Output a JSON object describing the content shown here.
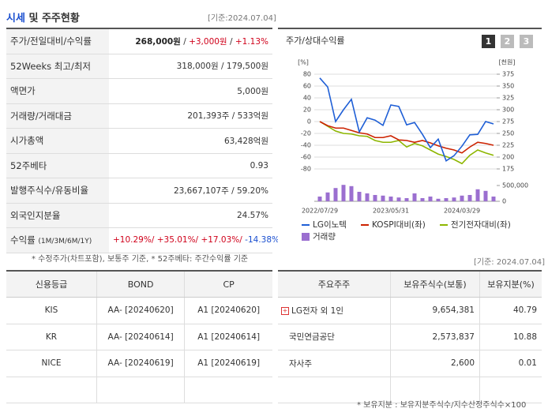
{
  "header": {
    "title_highlight": "시세",
    "title_rest": "및 주주현황",
    "date": "[기준:2024.07.04]"
  },
  "quote_table": {
    "rows": [
      {
        "label": "주가/전일대비/수익률",
        "parts": [
          "268,000원",
          "/",
          "+3,000원",
          "/",
          "+1.13%"
        ]
      },
      {
        "label": "52Weeks 최고/최저",
        "value": "318,000원 / 179,500원"
      },
      {
        "label": "액면가",
        "value": "5,000원"
      },
      {
        "label": "거래량/거래대금",
        "value": "201,393주 / 533억원"
      },
      {
        "label": "시가총액",
        "value": "63,428억원"
      },
      {
        "label": "52주베타",
        "value": "0.93"
      },
      {
        "label": "발행주식수/유동비율",
        "value": "23,667,107주 / 59.20%"
      },
      {
        "label": "외국인지분율",
        "value": "24.57%"
      },
      {
        "label": "수익률",
        "sublabel": "(1M/3M/6M/1Y)",
        "parts": [
          "+10.29%/",
          "+35.01%/",
          "+17.03%/",
          "-14.38%"
        ]
      }
    ],
    "note": "* 수정주가(차트포함), 보통주 기준, * 52주베타: 주간수익률 기준"
  },
  "chart_data": {
    "type": "line",
    "title": "주가/상대수익률",
    "buttons": [
      "1",
      "2",
      "3"
    ],
    "ylabel": "[%]",
    "y2label": "[천원]",
    "ylim": [
      -80,
      80
    ],
    "yticks": [
      80,
      60,
      40,
      20,
      0,
      -20,
      -40,
      -60,
      -80
    ],
    "y2lim": [
      175,
      375
    ],
    "y2ticks": [
      375,
      350,
      325,
      300,
      275,
      250,
      225,
      200,
      175
    ],
    "volume_lim": [
      0,
      500000
    ],
    "volume_ticks": [
      {
        "value": 500000,
        "label": "500,000"
      },
      0
    ],
    "grid": true,
    "categories": [
      "2022/07/29",
      null,
      null,
      null,
      null,
      null,
      null,
      null,
      null,
      "2023/05/31",
      null,
      null,
      null,
      null,
      null,
      null,
      null,
      null,
      "2024/03/29",
      null,
      null,
      null,
      null
    ],
    "series": [
      {
        "name": "LG이노텍",
        "color": "#1f5fd6",
        "axis": "y2",
        "values": [
          367,
          348,
          275,
          300,
          322,
          253,
          283,
          278,
          267,
          310,
          307,
          268,
          273,
          248,
          220,
          238,
          192,
          203,
          223,
          247,
          248,
          275,
          270
        ]
      },
      {
        "name": "KOSPI대비(좌)",
        "color": "#cc2200",
        "values": [
          0,
          -7,
          -11,
          -11,
          -15,
          -19,
          -21,
          -27,
          -27,
          -24,
          -31,
          -32,
          -35,
          -32,
          -36,
          -41,
          -45,
          -48,
          -53,
          -43,
          -35,
          -37,
          -40
        ]
      },
      {
        "name": "전기전자대비(좌)",
        "color": "#8db600",
        "values": [
          0,
          -8,
          -16,
          -20,
          -21,
          -24,
          -25,
          -32,
          -35,
          -35,
          -32,
          -43,
          -37,
          -41,
          -48,
          -55,
          -59,
          -64,
          -71,
          -57,
          -48,
          -53,
          -57
        ]
      },
      {
        "name": "거래량",
        "color": "#9b6fd0",
        "axis": "volume",
        "values": [
          150000,
          280000,
          420000,
          520000,
          480000,
          300000,
          250000,
          200000,
          180000,
          150000,
          120000,
          100000,
          250000,
          100000,
          150000,
          80000,
          100000,
          120000,
          180000,
          200000,
          380000,
          330000,
          150000
        ]
      }
    ]
  },
  "rating_table": {
    "header": [
      "신용등급",
      "BOND",
      "CP"
    ],
    "rows": [
      [
        "KIS",
        "AA- [20240620]",
        "A1 [20240620]"
      ],
      [
        "KR",
        "AA- [20240614]",
        "A1 [20240614]"
      ],
      [
        "NICE",
        "AA- [20240619]",
        "A1 [20240619]"
      ]
    ]
  },
  "holder_date": "[기준: 2024.07.04]",
  "holder_table": {
    "header": [
      "주요주주",
      "보유주식수(보통)",
      "보유지분(%)"
    ],
    "rows": [
      [
        "LG전자 외 1인",
        "9,654,381",
        "40.79"
      ],
      [
        "국민연금공단",
        "2,573,837",
        "10.88"
      ],
      [
        "자사주",
        "2,600",
        "0.01"
      ]
    ],
    "note": "* 보유지분 : 보유지분주식수/지수산정주식수×100"
  }
}
